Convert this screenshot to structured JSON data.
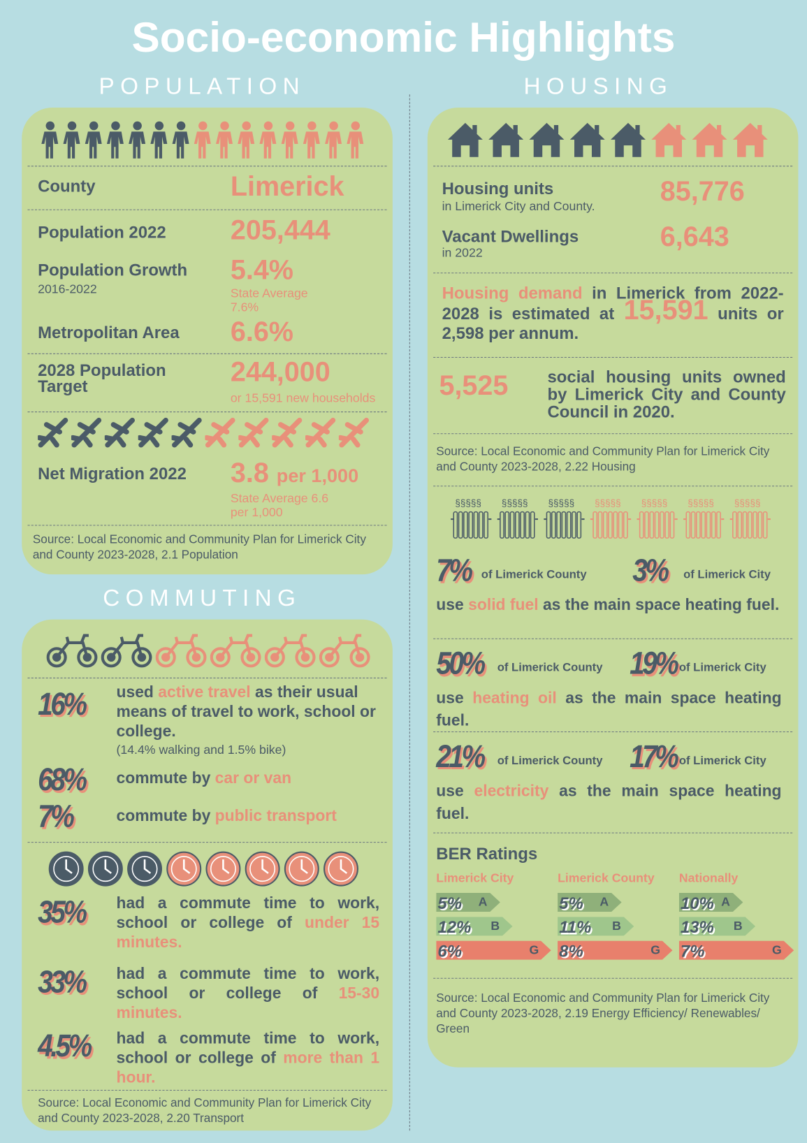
{
  "title": "Socio-economic Highlights",
  "population": {
    "heading": "POPULATION",
    "county": {
      "label": "County",
      "value": "Limerick"
    },
    "population": {
      "label": "Population 2022",
      "value": "205,444"
    },
    "growth": {
      "label": "Population Growth",
      "sub": "2016-2022",
      "value": "5.4%",
      "note": "State Average 7.6%"
    },
    "metro": {
      "label": "Metropolitan Area",
      "value": "6.6%"
    },
    "target": {
      "label": "2028 Population Target",
      "value": "244,000",
      "note": "or 15,591 new households"
    },
    "migration": {
      "label": "Net Migration 2022",
      "value": "3.8",
      "unit": "per 1,000",
      "note": "State Average 6.6 per 1,000"
    },
    "source": "Source: Local Economic and Community Plan for Limerick City and County 2023-2028, 2.1 Population"
  },
  "commuting": {
    "heading": "COMMUTING",
    "modes": [
      {
        "stat": "16%",
        "text": [
          "used ",
          "active travel",
          " as their usual means of travel to work, school or college."
        ],
        "note": "(14.4% walking and 1.5% bike)"
      },
      {
        "stat": "68%",
        "text": [
          "commute by ",
          "car or van"
        ]
      },
      {
        "stat": "7%",
        "text": [
          "commute by ",
          "public transport"
        ]
      }
    ],
    "times": [
      {
        "stat": "35%",
        "text": [
          "had a commute time to work, school or college of ",
          "under 15 minutes."
        ]
      },
      {
        "stat": "33%",
        "text": [
          "had a commute time to work, school or college of ",
          "15-30 minutes."
        ]
      },
      {
        "stat": "4.5%",
        "text": [
          "had a commute time to work, school or college of ",
          "more than 1 hour."
        ]
      }
    ],
    "source": "Source: Local Economic and Community Plan for Limerick City and County 2023-2028, 2.20 Transport"
  },
  "housing": {
    "heading": "HOUSING",
    "units": {
      "label": "Housing units",
      "sub": "in Limerick City and County.",
      "value": "85,776"
    },
    "vacant": {
      "label": "Vacant Dwellings",
      "sub": "in 2022",
      "value": "6,643"
    },
    "demand": [
      "Housing demand",
      " in Limerick from 2022-2028 is estimated at ",
      "15,591",
      " units or 2,598 per annum."
    ],
    "social": {
      "value": "5,525",
      "text": "social housing units owned by Limerick City and County Council in 2020."
    },
    "source": "Source: Local Economic and Community Plan for Limerick City and County 2023-2028, 2.22 Housing",
    "heating": [
      {
        "county": "7%",
        "county_label": "of Limerick County",
        "city": "3%",
        "city_label": "of Limerick City",
        "text": [
          "use ",
          "solid fuel",
          " as the main space heating fuel."
        ]
      },
      {
        "county": "50%",
        "county_label": "of Limerick County",
        "city": "19%",
        "city_label": "of Limerick City",
        "text": [
          "use ",
          "heating oil",
          " as the main space heating fuel."
        ]
      },
      {
        "county": "21%",
        "county_label": "of Limerick County",
        "city": "17%",
        "city_label": "of Limerick City",
        "text": [
          "use ",
          "electricity",
          " as the main space heating fuel."
        ]
      }
    ],
    "ber": {
      "title": "BER Ratings",
      "groups": [
        {
          "name": "Limerick City",
          "ratings": [
            {
              "pct": "5%",
              "grade": "A"
            },
            {
              "pct": "12%",
              "grade": "B"
            },
            {
              "pct": "6%",
              "grade": "G"
            }
          ]
        },
        {
          "name": "Limerick County",
          "ratings": [
            {
              "pct": "5%",
              "grade": "A"
            },
            {
              "pct": "11%",
              "grade": "B"
            },
            {
              "pct": "8%",
              "grade": "G"
            }
          ]
        },
        {
          "name": "Nationally",
          "ratings": [
            {
              "pct": "10%",
              "grade": "A"
            },
            {
              "pct": "13%",
              "grade": "B"
            },
            {
              "pct": "7%",
              "grade": "G"
            }
          ]
        }
      ]
    },
    "source2": "Source: Local Economic and Community Plan for Limerick City and County 2023-2028, 2.19 Energy Efficiency/ Renewables/ Green"
  }
}
